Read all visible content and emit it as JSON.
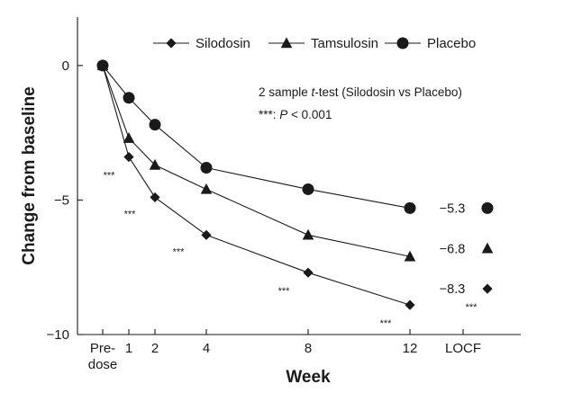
{
  "chart_data": {
    "type": "line",
    "xlabel": "Week",
    "ylabel": "Change from baseline",
    "ylim": [
      -10,
      1.8
    ],
    "yticks": [
      {
        "value": 0,
        "label": "0"
      },
      {
        "value": -5,
        "label": "−5"
      },
      {
        "value": -10,
        "label": "−10"
      }
    ],
    "xticks": [
      {
        "x": 0,
        "label": "Pre-",
        "label2": "dose"
      },
      {
        "x": 1,
        "label": "1"
      },
      {
        "x": 2,
        "label": "2"
      },
      {
        "x": 4,
        "label": "4"
      },
      {
        "x": 8,
        "label": "8"
      },
      {
        "x": 12,
        "label": "12"
      },
      {
        "x": "LOCF",
        "label": "LOCF"
      }
    ],
    "series": [
      {
        "name": "Silodosin",
        "marker": "diamond",
        "x": [
          0,
          1,
          2,
          4,
          8,
          12
        ],
        "values": [
          0,
          -3.4,
          -4.9,
          -6.3,
          -7.7,
          -8.9
        ],
        "locf": -8.3,
        "locf_label": "−8.3"
      },
      {
        "name": "Tamsulosin",
        "marker": "triangle",
        "x": [
          0,
          1,
          2,
          4,
          8,
          12
        ],
        "values": [
          0,
          -2.7,
          -3.7,
          -4.6,
          -6.3,
          -7.1
        ],
        "locf": -6.8,
        "locf_label": "−6.8"
      },
      {
        "name": "Placebo",
        "marker": "circle",
        "x": [
          0,
          1,
          2,
          4,
          8,
          12
        ],
        "values": [
          0,
          -1.2,
          -2.2,
          -3.8,
          -4.6,
          -5.3
        ],
        "locf": -5.3,
        "locf_label": "−5.3"
      }
    ],
    "annotation": {
      "line1_a": "2 sample ",
      "line1_italic": "t",
      "line1_b": "-test (Silodosin vs Placebo)",
      "line2_a": "***: ",
      "line2_italic": "P",
      "line2_b": " < 0.001"
    },
    "significance_marker": "***",
    "significance_at_weeks": [
      1,
      2,
      4,
      8,
      12,
      "LOCF"
    ],
    "legend_position": "top",
    "grid": false
  }
}
